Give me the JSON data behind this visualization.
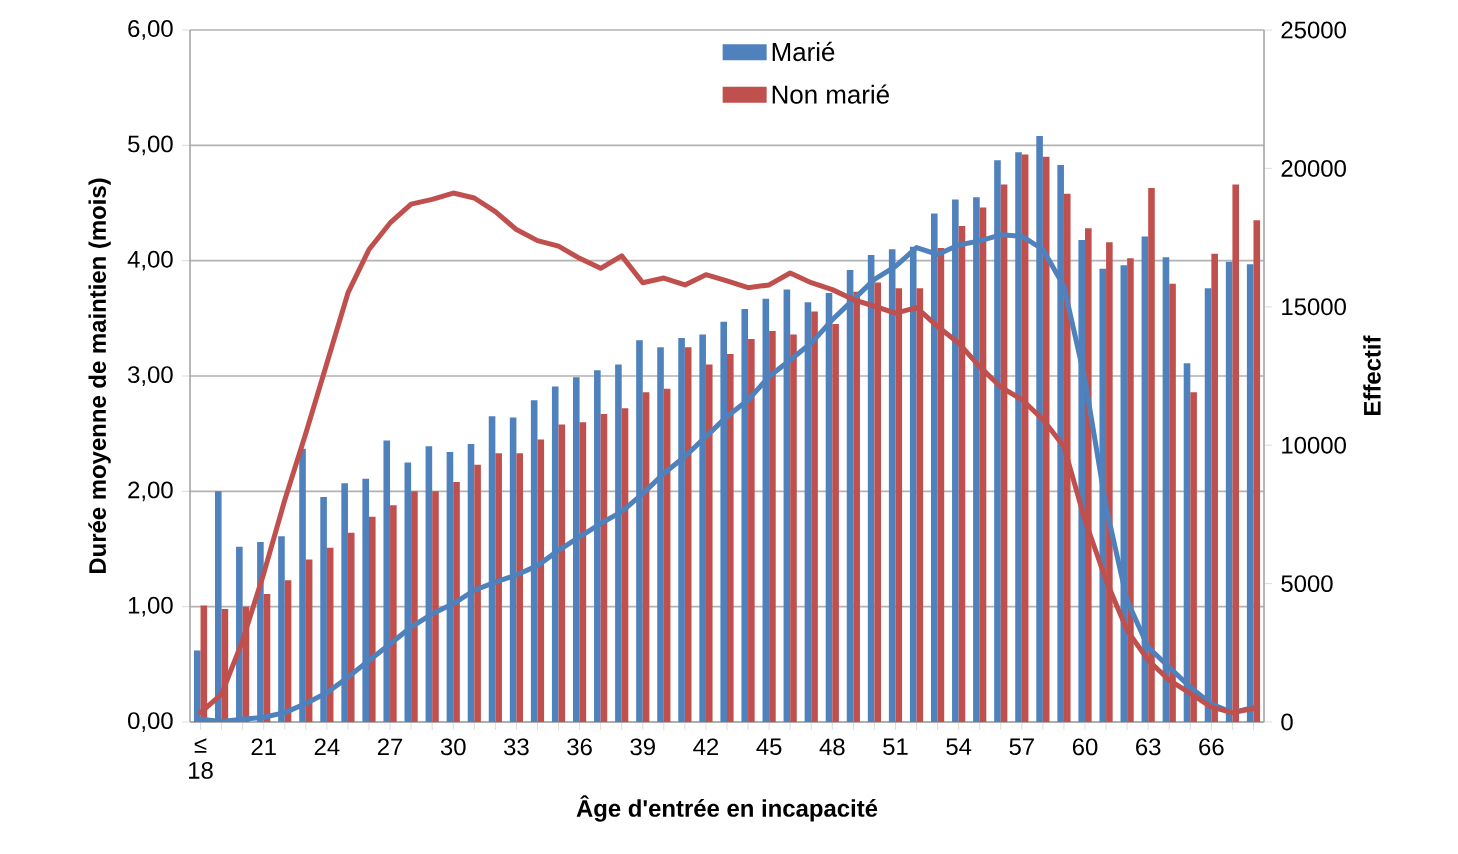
{
  "chart_data": {
    "type": "bar",
    "xlabel": "Âge d'entrée en incapacité",
    "ylabel": "Durée moyenne de maintien (mois)",
    "y2label": "Effectif",
    "categories": [
      "≤ 18",
      null,
      null,
      "21",
      null,
      null,
      "24",
      null,
      null,
      "27",
      null,
      null,
      "30",
      null,
      null,
      "33",
      null,
      null,
      "36",
      null,
      null,
      "39",
      null,
      null,
      "42",
      null,
      null,
      "45",
      null,
      null,
      "48",
      null,
      null,
      "51",
      null,
      null,
      "54",
      null,
      null,
      "57",
      null,
      null,
      "60",
      null,
      null,
      "63",
      null,
      null,
      "66",
      null,
      null
    ],
    "series": [
      {
        "name": "Marié",
        "color": "#4f81bd",
        "values": [
          0.62,
          2.0,
          1.52,
          1.56,
          1.61,
          2.37,
          1.95,
          2.07,
          2.11,
          2.44,
          2.25,
          2.39,
          2.34,
          2.41,
          2.65,
          2.64,
          2.79,
          2.91,
          2.99,
          3.05,
          3.1,
          3.31,
          3.25,
          3.33,
          3.36,
          3.47,
          3.58,
          3.67,
          3.75,
          3.64,
          3.72,
          3.92,
          4.05,
          4.1,
          4.12,
          4.41,
          4.53,
          4.55,
          4.87,
          4.94,
          5.08,
          4.83,
          4.18,
          3.93,
          3.96,
          4.21,
          4.03,
          3.11,
          3.76,
          3.99,
          3.97
        ]
      },
      {
        "name": "Non marié",
        "color": "#c0504d",
        "values": [
          1.01,
          0.98,
          1.0,
          1.11,
          1.23,
          1.41,
          1.51,
          1.64,
          1.78,
          1.88,
          2.0,
          2.0,
          2.08,
          2.23,
          2.33,
          2.33,
          2.45,
          2.58,
          2.6,
          2.67,
          2.72,
          2.86,
          2.89,
          3.25,
          3.1,
          3.19,
          3.32,
          3.39,
          3.36,
          3.56,
          3.45,
          3.73,
          3.81,
          3.76,
          3.76,
          4.11,
          4.3,
          4.46,
          4.66,
          4.92,
          4.9,
          4.58,
          4.28,
          4.16,
          4.02,
          4.63,
          3.8,
          2.86,
          4.06,
          4.66,
          4.35
        ]
      },
      {
        "type": "line",
        "axis": "y2",
        "color": "#4f81bd",
        "values": [
          100,
          20,
          100,
          170,
          340,
          670,
          1060,
          1620,
          2220,
          2820,
          3430,
          3910,
          4270,
          4760,
          5050,
          5310,
          5650,
          6200,
          6690,
          7170,
          7600,
          8250,
          8980,
          9590,
          10310,
          11040,
          11630,
          12480,
          13080,
          13690,
          14530,
          15260,
          15990,
          16460,
          17140,
          16890,
          17230,
          17380,
          17600,
          17550,
          17070,
          15740,
          12360,
          7770,
          4390,
          2700,
          1980,
          1260,
          650,
          340,
          530
        ]
      },
      {
        "type": "line",
        "axis": "y2",
        "color": "#c0504d",
        "values": [
          340,
          1010,
          2950,
          5360,
          8020,
          10430,
          12960,
          15500,
          17070,
          18030,
          18710,
          18880,
          19110,
          18930,
          18440,
          17790,
          17390,
          17190,
          16750,
          16390,
          16840,
          15870,
          16040,
          15790,
          16160,
          15940,
          15690,
          15790,
          16220,
          15870,
          15620,
          15260,
          15020,
          14770,
          14970,
          14290,
          13690,
          12840,
          12100,
          11650,
          10930,
          9950,
          7290,
          5120,
          3310,
          2230,
          1510,
          1030,
          540,
          340,
          490
        ]
      }
    ],
    "ylim": [
      0,
      6
    ],
    "yticks": [
      {
        "value": 0,
        "label": "0,00"
      },
      {
        "value": 1,
        "label": "1,00"
      },
      {
        "value": 2,
        "label": "2,00"
      },
      {
        "value": 3,
        "label": "3,00"
      },
      {
        "value": 4,
        "label": "4,00"
      },
      {
        "value": 5,
        "label": "5,00"
      },
      {
        "value": 6,
        "label": "6,00"
      }
    ],
    "y2lim": [
      0,
      25000
    ],
    "y2ticks": [
      0,
      5000,
      10000,
      15000,
      20000,
      25000
    ],
    "grid": "y",
    "legend": "top"
  }
}
